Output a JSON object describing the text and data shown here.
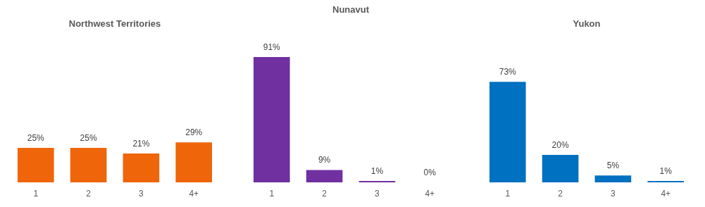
{
  "chart_data": [
    {
      "type": "bar",
      "title": "Northwest Territories",
      "categories": [
        "1",
        "2",
        "3",
        "4+"
      ],
      "values": [
        25,
        25,
        21,
        29
      ],
      "color": "#ef650a",
      "data_labels": true,
      "value_labels": [
        "25%",
        "25%",
        "21%",
        "29%"
      ],
      "tick_labels": "x"
    },
    {
      "type": "bar",
      "title": "Nunavut",
      "categories": [
        "1",
        "2",
        "3",
        "4+"
      ],
      "values": [
        91,
        9,
        1,
        0
      ],
      "color": "#7030a0",
      "data_labels": true,
      "value_labels": [
        "91%",
        "9%",
        "1%",
        "0%"
      ],
      "tick_labels": "x"
    },
    {
      "type": "bar",
      "title": "Yukon",
      "categories": [
        "1",
        "2",
        "3",
        "4+"
      ],
      "values": [
        73,
        20,
        5,
        1
      ],
      "color": "#0070c0",
      "data_labels": true,
      "value_labels": [
        "73%",
        "20%",
        "5%",
        "1%"
      ],
      "tick_labels": "x"
    }
  ]
}
